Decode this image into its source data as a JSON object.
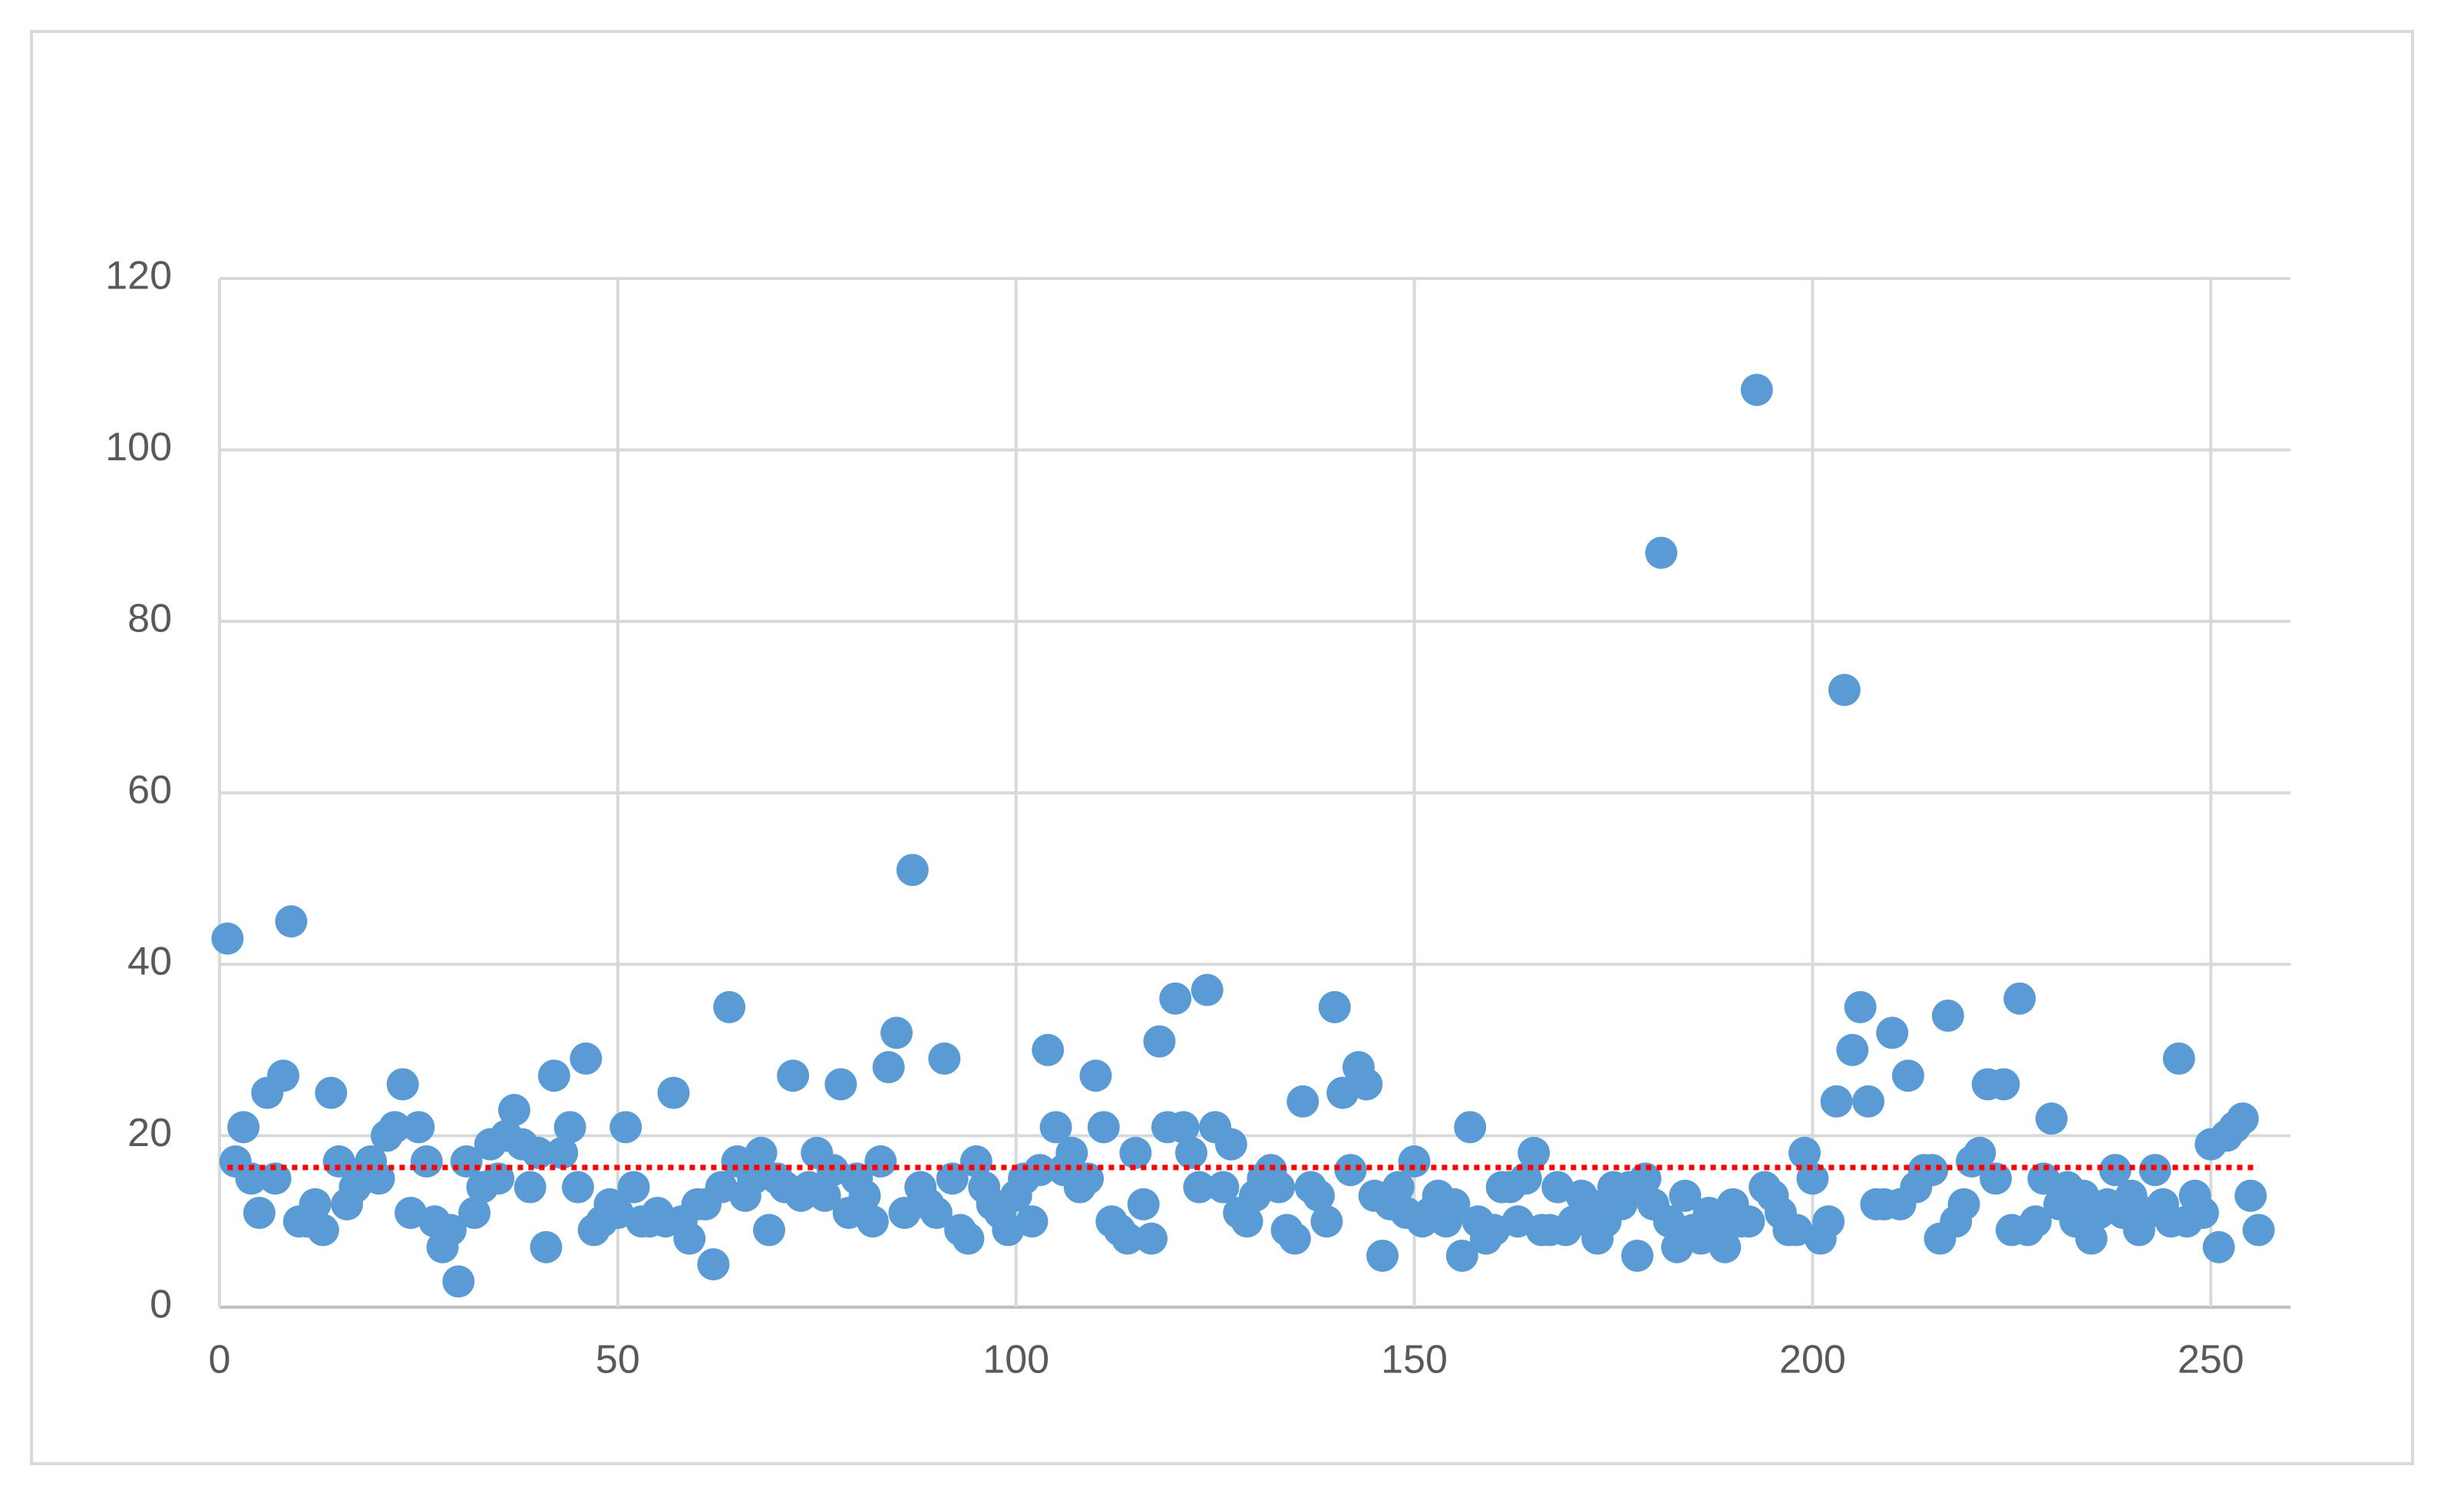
{
  "chart_data": {
    "type": "scatter",
    "x": [
      1,
      2,
      3,
      4,
      5,
      6,
      7,
      8,
      9,
      10,
      11,
      12,
      13,
      14,
      15,
      16,
      17,
      18,
      19,
      20,
      21,
      22,
      23,
      24,
      25,
      26,
      27,
      28,
      29,
      30,
      31,
      32,
      33,
      34,
      35,
      36,
      37,
      38,
      39,
      40,
      41,
      42,
      43,
      44,
      45,
      46,
      47,
      48,
      49,
      50,
      51,
      52,
      53,
      54,
      55,
      56,
      57,
      58,
      59,
      60,
      61,
      62,
      63,
      64,
      65,
      66,
      67,
      68,
      69,
      70,
      71,
      72,
      73,
      74,
      75,
      76,
      77,
      78,
      79,
      80,
      81,
      82,
      83,
      84,
      85,
      86,
      87,
      88,
      89,
      90,
      91,
      92,
      93,
      94,
      95,
      96,
      97,
      98,
      99,
      100,
      101,
      102,
      103,
      104,
      105,
      106,
      107,
      108,
      109,
      110,
      111,
      112,
      113,
      114,
      115,
      116,
      117,
      118,
      119,
      120,
      121,
      122,
      123,
      124,
      125,
      126,
      127,
      128,
      129,
      130,
      131,
      132,
      133,
      134,
      135,
      136,
      137,
      138,
      139,
      140,
      141,
      142,
      143,
      144,
      145,
      146,
      147,
      148,
      149,
      150,
      151,
      152,
      153,
      154,
      155,
      156,
      157,
      158,
      159,
      160,
      161,
      162,
      163,
      164,
      165,
      166,
      167,
      168,
      169,
      170,
      171,
      172,
      173,
      174,
      175,
      176,
      177,
      178,
      179,
      180,
      181,
      182,
      183,
      184,
      185,
      186,
      187,
      188,
      189,
      190,
      191,
      192,
      193,
      194,
      195,
      196,
      197,
      198,
      199,
      200,
      201,
      202,
      203,
      204,
      205,
      206,
      207,
      208,
      209,
      210,
      211,
      212,
      213,
      214,
      215,
      216,
      217,
      218,
      219,
      220,
      221,
      222,
      223,
      224,
      225,
      226,
      227,
      228,
      229,
      230,
      231,
      232,
      233,
      234,
      235,
      236,
      237,
      238,
      239,
      240,
      241,
      242,
      243,
      244,
      245,
      246,
      247,
      248,
      249,
      250,
      251,
      252,
      253,
      254,
      255,
      256
    ],
    "values": [
      43,
      17,
      21,
      15,
      11,
      25,
      15,
      27,
      45,
      10,
      10,
      12,
      9,
      25,
      17,
      12,
      14,
      15,
      17,
      15,
      20,
      21,
      26,
      11,
      21,
      17,
      10,
      7,
      9,
      3,
      17,
      11,
      14,
      19,
      15,
      20,
      23,
      19,
      14,
      18,
      7,
      27,
      18,
      21,
      14,
      29,
      9,
      10,
      12,
      11,
      21,
      14,
      10,
      10,
      11,
      10,
      25,
      10,
      8,
      12,
      12,
      5,
      14,
      35,
      17,
      13,
      15,
      18,
      9,
      15,
      14,
      27,
      13,
      14,
      18,
      13,
      16,
      26,
      11,
      15,
      13,
      10,
      17,
      28,
      32,
      11,
      51,
      14,
      12,
      11,
      29,
      15,
      9,
      8,
      17,
      14,
      12,
      11,
      9,
      13,
      15,
      10,
      16,
      30,
      21,
      16,
      18,
      14,
      15,
      27,
      21,
      10,
      9,
      8,
      18,
      12,
      8,
      31,
      21,
      36,
      21,
      18,
      14,
      37,
      21,
      14,
      19,
      11,
      10,
      13,
      15,
      16,
      14,
      9,
      8,
      24,
      14,
      13,
      10,
      35,
      25,
      16,
      28,
      26,
      13,
      6,
      12,
      14,
      11,
      17,
      10,
      11,
      13,
      10,
      12,
      6,
      21,
      10,
      8,
      9,
      14,
      14,
      10,
      15,
      18,
      9,
      9,
      14,
      9,
      10,
      13,
      12,
      8,
      10,
      14,
      12,
      14,
      6,
      15,
      12,
      88,
      10,
      7,
      13,
      9,
      8,
      11,
      9,
      7,
      12,
      10,
      10,
      107,
      14,
      13,
      11,
      9,
      9,
      18,
      15,
      8,
      10,
      24,
      72,
      30,
      35,
      24,
      12,
      12,
      32,
      12,
      27,
      14,
      16,
      16,
      8,
      34,
      10,
      12,
      17,
      18,
      26,
      15,
      26,
      9,
      36,
      9,
      10,
      15,
      22,
      12,
      14,
      10,
      13,
      8,
      11,
      12,
      16,
      11,
      13,
      9,
      11,
      16,
      12,
      10,
      29,
      10,
      13,
      11,
      19,
      7,
      20,
      21,
      22,
      13,
      9
    ],
    "color": "#5b9bd5",
    "reference_line": {
      "value": 16.3,
      "color": "#ff0000"
    },
    "xlim": [
      0,
      260
    ],
    "xticks": [
      0,
      50,
      100,
      150,
      200,
      250
    ],
    "ylim": [
      0,
      120
    ],
    "yticks": [
      0,
      20,
      40,
      60,
      80,
      100,
      120
    ],
    "grid": true
  }
}
